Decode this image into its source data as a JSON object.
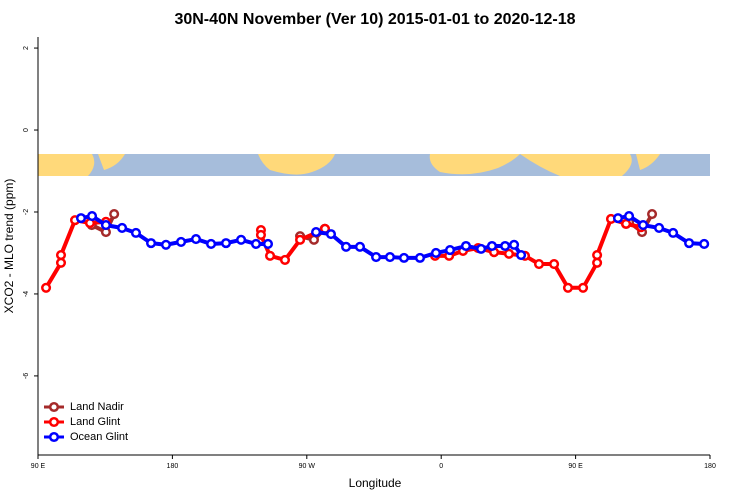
{
  "chart_data": {
    "type": "line",
    "title": "30N-40N November (Ver 10)   2015-01-01 to 2020-12-18",
    "x_label": "Longitude",
    "y_label": "XCO2 - MLO trend (ppm)",
    "xlim": [
      90,
      540
    ],
    "ylim": [
      -7.93,
      2.27
    ],
    "xticks": [
      {
        "value": 90,
        "label": "90 E"
      },
      180,
      {
        "value": 270,
        "label": "90 W"
      },
      {
        "value": 360,
        "label": "0"
      },
      {
        "value": 450,
        "label": "90 E"
      },
      {
        "value": 540,
        "label": "180"
      }
    ],
    "yticks": [
      2,
      0,
      -2,
      -4,
      -6
    ],
    "legend": "bottom-left",
    "series": [
      {
        "name": "Land Nadir",
        "color": "#a52a2a",
        "x": [
          126,
          135.5,
          141,
          null,
          265.5,
          274.8,
          282,
          null,
          483.8,
          485.8,
          494.5,
          501.2
        ],
        "values": [
          -2.32,
          -2.49,
          -2.05,
          null,
          -2.59,
          -2.68,
          -2.41,
          null,
          -2.29,
          -2.24,
          -2.49,
          -2.05
        ]
      },
      {
        "name": "Land Glint",
        "color": "#ff0000",
        "x": [
          95.4,
          105.4,
          105.4,
          114.8,
          124.8,
          135.5,
          null,
          239.3,
          239.3,
          245.4,
          255.4,
          265.5,
          282.2,
          null,
          355.9,
          365.3,
          374.6,
          384.7,
          395.4,
          405.4,
          416.1,
          425.5,
          435.6,
          444.9,
          455.0,
          464.4,
          464.4,
          473.7,
          483.8,
          493.8
        ],
        "values": [
          -3.85,
          -3.24,
          -3.05,
          -2.2,
          -2.27,
          -2.24,
          null,
          -2.44,
          -2.56,
          -3.07,
          -3.17,
          -2.68,
          -2.41,
          null,
          -3.07,
          -3.07,
          -2.95,
          -2.88,
          -2.98,
          -3.02,
          -3.07,
          -3.27,
          -3.27,
          -3.85,
          -3.85,
          -3.24,
          -3.05,
          -2.17,
          -2.29,
          -2.37
        ]
      },
      {
        "name": "Ocean Glint",
        "color": "#0000ff",
        "x": [
          118.8,
          126.2,
          135.5,
          146.3,
          155.6,
          165.7,
          175.7,
          185.8,
          195.8,
          205.9,
          215.9,
          226.0,
          236.0,
          244.0,
          null,
          276.2,
          286.2,
          296.3,
          305.6,
          316.4,
          325.7,
          335.1,
          345.8,
          356.5,
          365.9,
          376.6,
          386.7,
          394.0,
          402.8,
          408.8,
          413.5,
          null,
          478.4,
          485.8,
          495.2,
          505.9,
          515.3,
          526.0,
          536.1
        ],
        "values": [
          -2.15,
          -2.1,
          -2.32,
          -2.39,
          -2.51,
          -2.76,
          -2.8,
          -2.73,
          -2.66,
          -2.78,
          -2.76,
          -2.68,
          -2.78,
          -2.78,
          null,
          -2.49,
          -2.54,
          -2.85,
          -2.85,
          -3.1,
          -3.1,
          -3.12,
          -3.12,
          -3.0,
          -2.93,
          -2.83,
          -2.9,
          -2.83,
          -2.83,
          -2.8,
          -3.05,
          null,
          -2.15,
          -2.1,
          -2.32,
          -2.39,
          -2.51,
          -2.76,
          -2.78
        ]
      }
    ]
  }
}
